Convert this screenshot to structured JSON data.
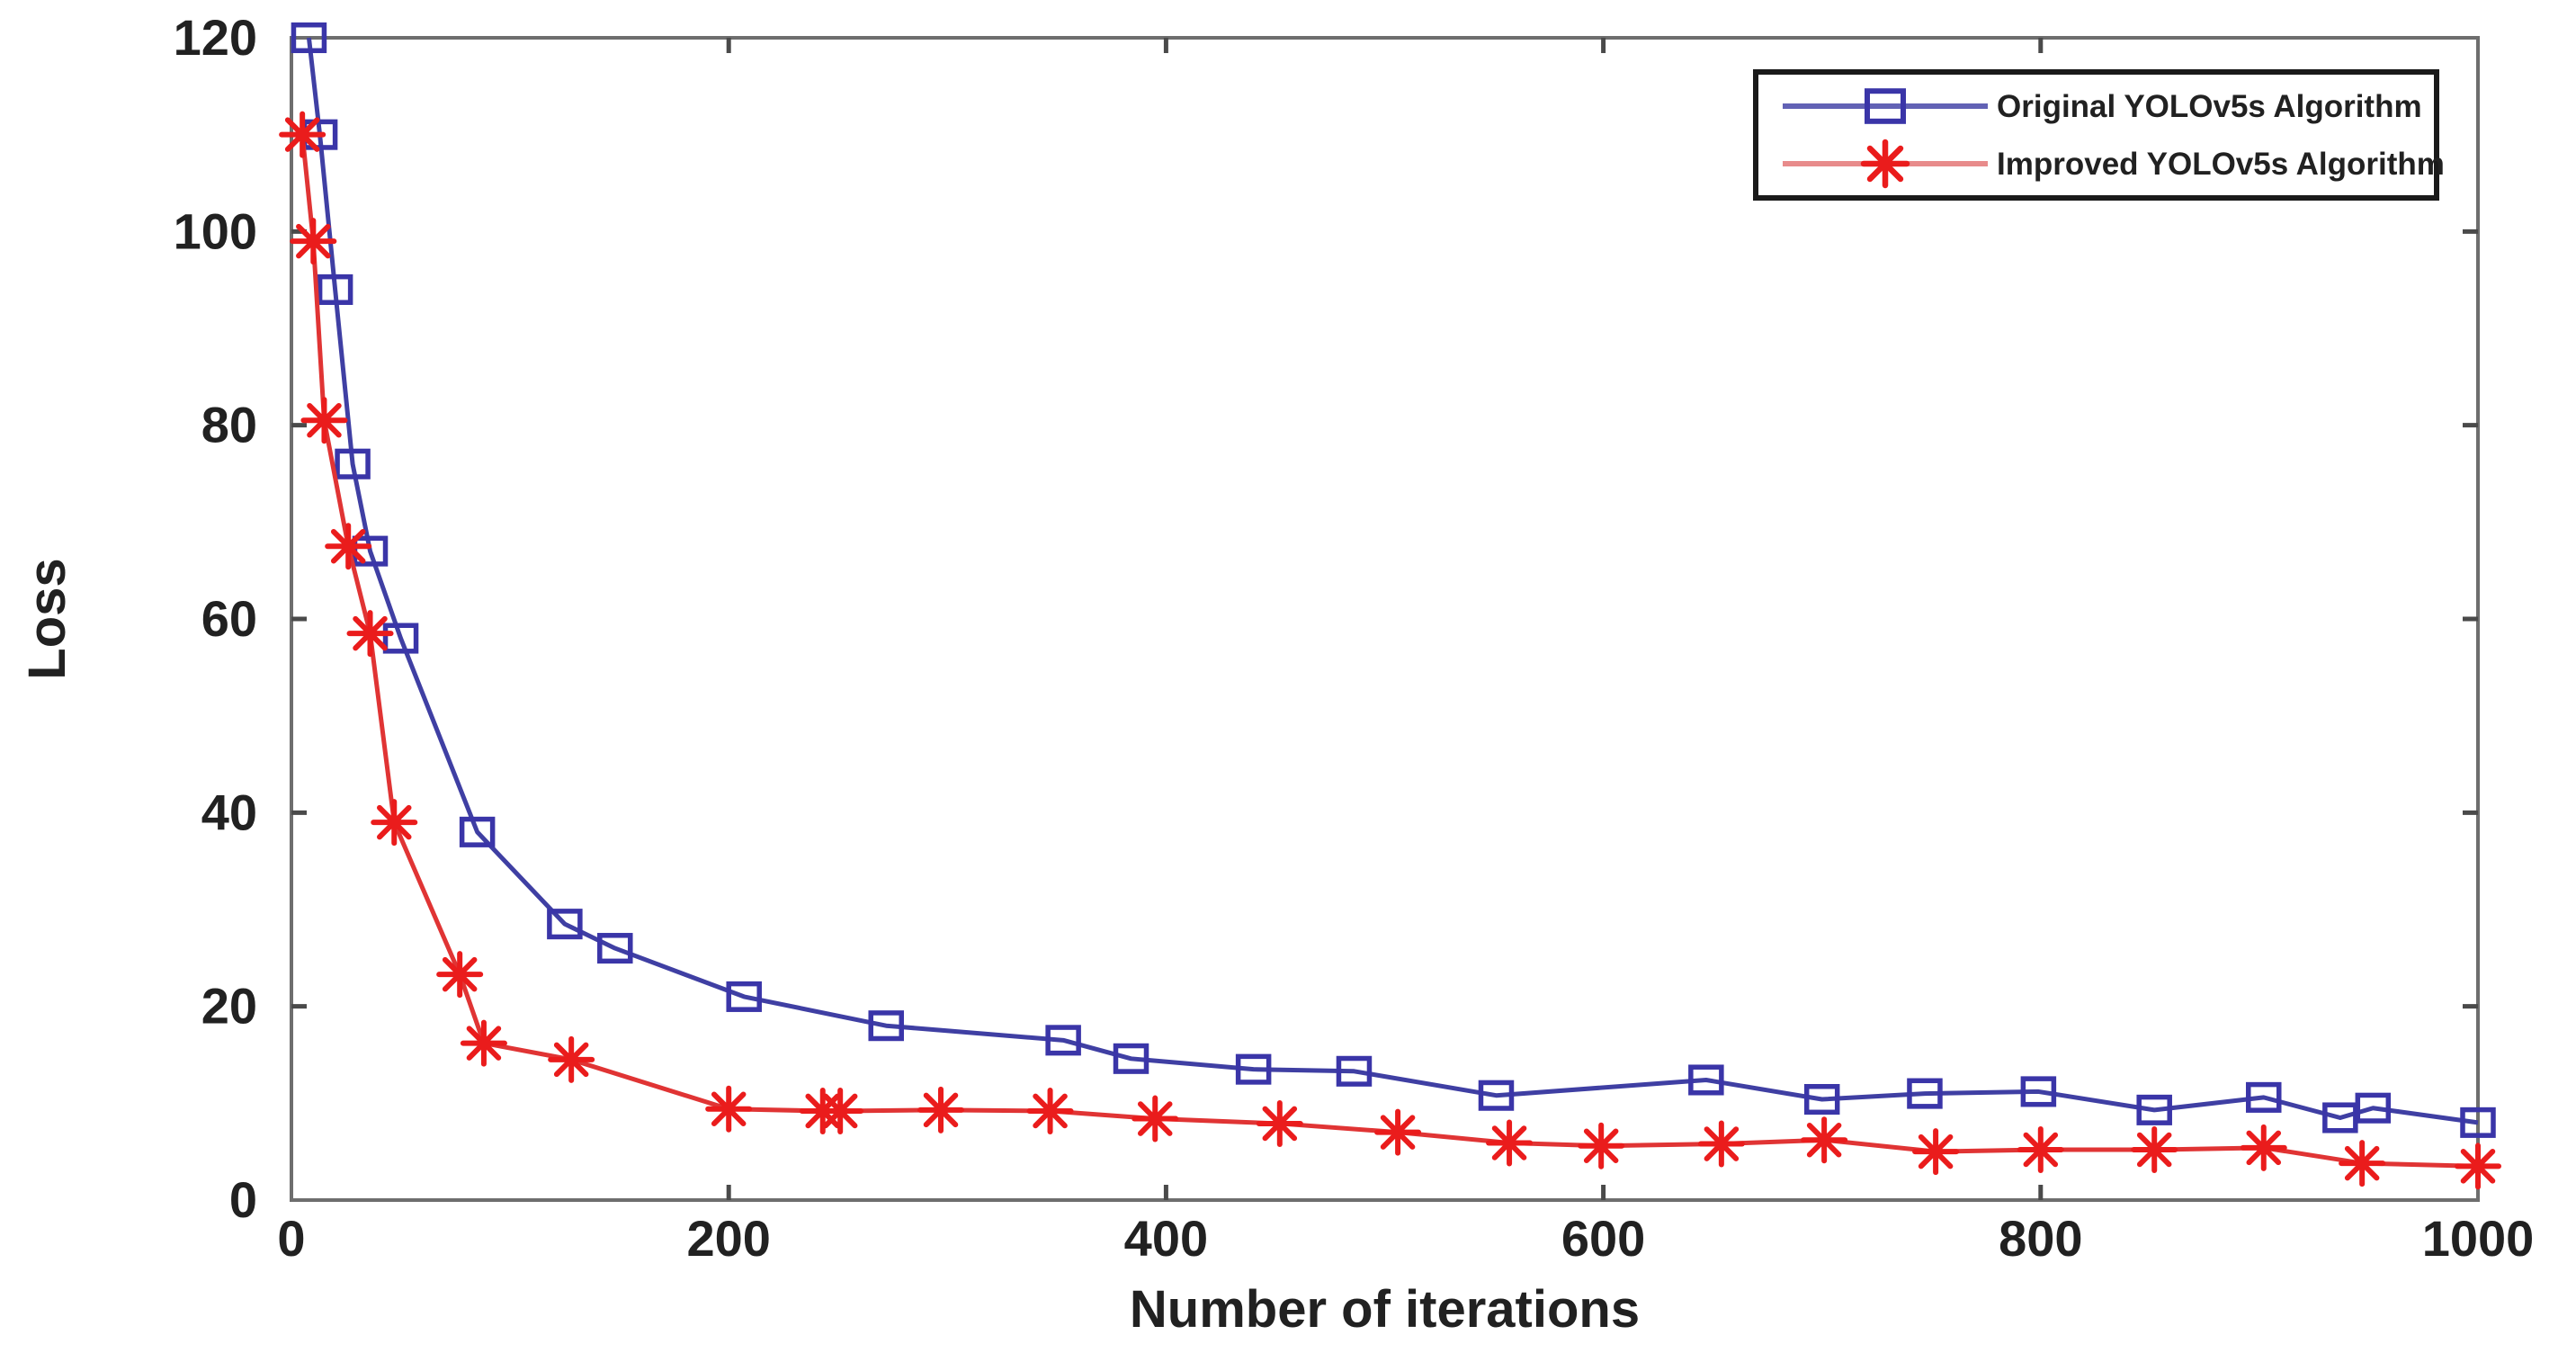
{
  "chart_data": {
    "type": "line",
    "title": "",
    "xlabel": "Number of iterations",
    "ylabel": "Loss",
    "xlim": [
      0,
      1000
    ],
    "ylim": [
      0,
      120
    ],
    "x_ticks": [
      0,
      200,
      400,
      600,
      800,
      1000
    ],
    "y_ticks": [
      0,
      20,
      40,
      60,
      80,
      100,
      120
    ],
    "grid": false,
    "legend_position": "top-right",
    "series": [
      {
        "name": "Original YOLOv5s Algorithm",
        "marker": "square",
        "color": "#3f3fa3",
        "marker_color": "#3a35a8",
        "legend_line_color": "#6262b5",
        "x": [
          8,
          13,
          20,
          28,
          36,
          50,
          85,
          125,
          148,
          207,
          272,
          353,
          384,
          440,
          486,
          551,
          647,
          700,
          747,
          799,
          852,
          902,
          937,
          952,
          1000
        ],
        "y": [
          120,
          110,
          94,
          76,
          67,
          58,
          38,
          28.5,
          26,
          21,
          18,
          16.5,
          14.6,
          13.5,
          13.3,
          10.8,
          12.4,
          10.4,
          11,
          11.2,
          9.3,
          10.6,
          8.5,
          9.5,
          8
        ]
      },
      {
        "name": "Improved YOLOv5s Algorithm",
        "marker": "star",
        "color": "#e03434",
        "marker_color": "#ea1c1c",
        "legend_line_color": "#e88b8b",
        "x": [
          5,
          10,
          15,
          26,
          36,
          47,
          77,
          88,
          128,
          200,
          243,
          251,
          297,
          347,
          395,
          452,
          506,
          557,
          599,
          654,
          701,
          752,
          800,
          852,
          902,
          947,
          1000
        ],
        "y": [
          110,
          99,
          80.5,
          67.5,
          58.5,
          39,
          23.3,
          16.2,
          14.5,
          9.4,
          9.2,
          9.2,
          9.3,
          9.2,
          8.4,
          7.9,
          7,
          5.9,
          5.6,
          5.8,
          6.2,
          5,
          5.2,
          5.2,
          5.4,
          3.8,
          3.5
        ]
      }
    ],
    "frame_color": "#6e6e6e",
    "tick_color": "#4a4a4a",
    "text_color": "#212121",
    "legend_border_color": "#1a1a1a",
    "background_color": "#ffffff"
  }
}
